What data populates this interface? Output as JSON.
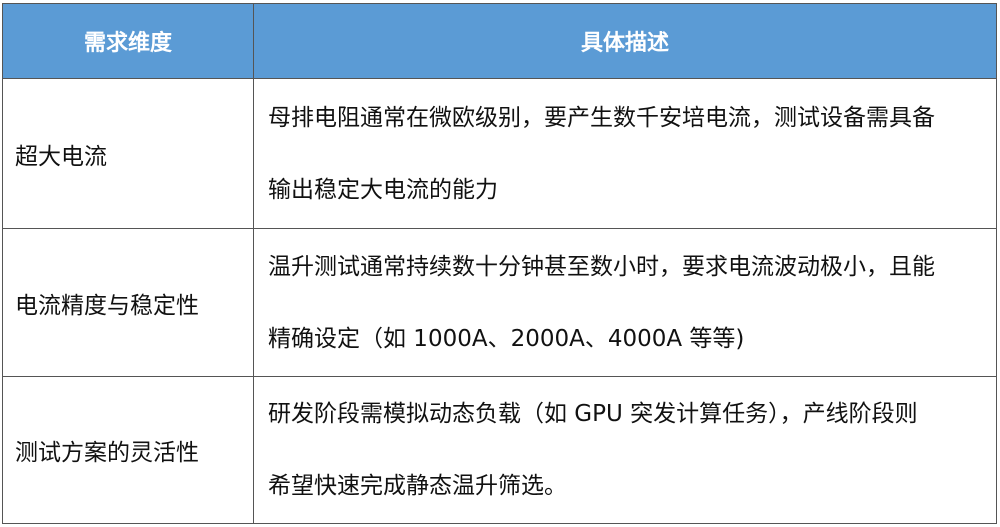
{
  "header": {
    "col1": "需求维度",
    "col2": "具体描述",
    "bg_color": "#5b9bd5"
  },
  "rows": [
    {
      "dimension": "超大电流",
      "lines": [
        "母排电阻通常在微欧级别，要产生数千安培电流，测试设备需具备",
        "输出稳定大电流的能力"
      ]
    },
    {
      "dimension": "电流精度与稳定性",
      "lines": [
        "温升测试通常持续数十分钟甚至数小时，要求电流波动极小，且能",
        "精确设定（如 1000A、2000A、4000A 等等)"
      ]
    },
    {
      "dimension": "测试方案的灵活性",
      "lines": [
        "研发阶段需模拟动态负载（如 GPU 突发计算任务），产线阶段则",
        "希望快速完成静态温升筛选。"
      ]
    }
  ]
}
